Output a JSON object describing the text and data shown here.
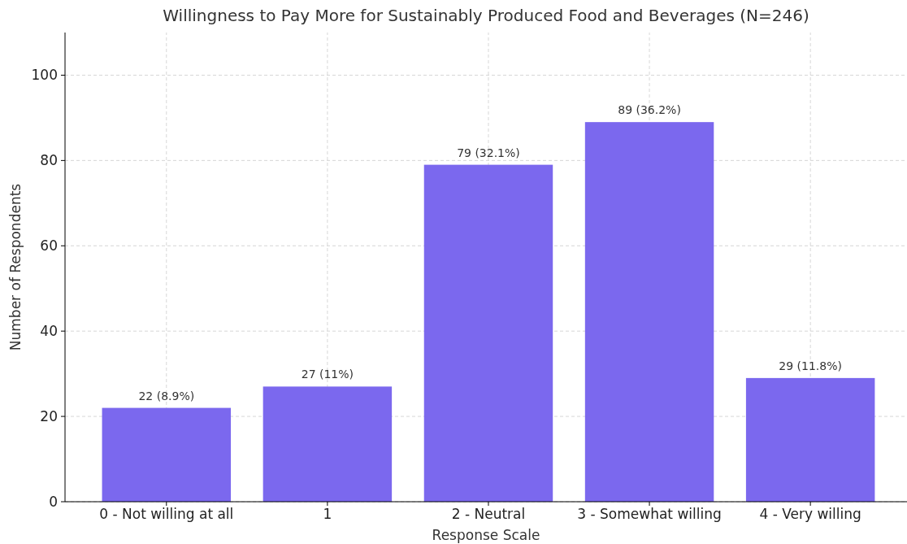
{
  "chart_data": {
    "type": "bar",
    "title": "Willingness to Pay More for Sustainably Produced Food and Beverages (N=246)",
    "xlabel": "Response Scale",
    "ylabel": "Number of Respondents",
    "categories": [
      "0 - Not willing at all",
      "1",
      "2 - Neutral",
      "3 - Somewhat willing",
      "4 - Very willing"
    ],
    "values": [
      22,
      27,
      79,
      89,
      29
    ],
    "value_labels": [
      "22 (8.9%)",
      "27 (11%)",
      "79 (32.1%)",
      "89 (36.2%)",
      "29 (11.8%)"
    ],
    "color": "#7b68ee",
    "ylim": [
      0,
      110
    ],
    "yticks": [
      0,
      20,
      40,
      60,
      80,
      100
    ],
    "grid": true
  }
}
